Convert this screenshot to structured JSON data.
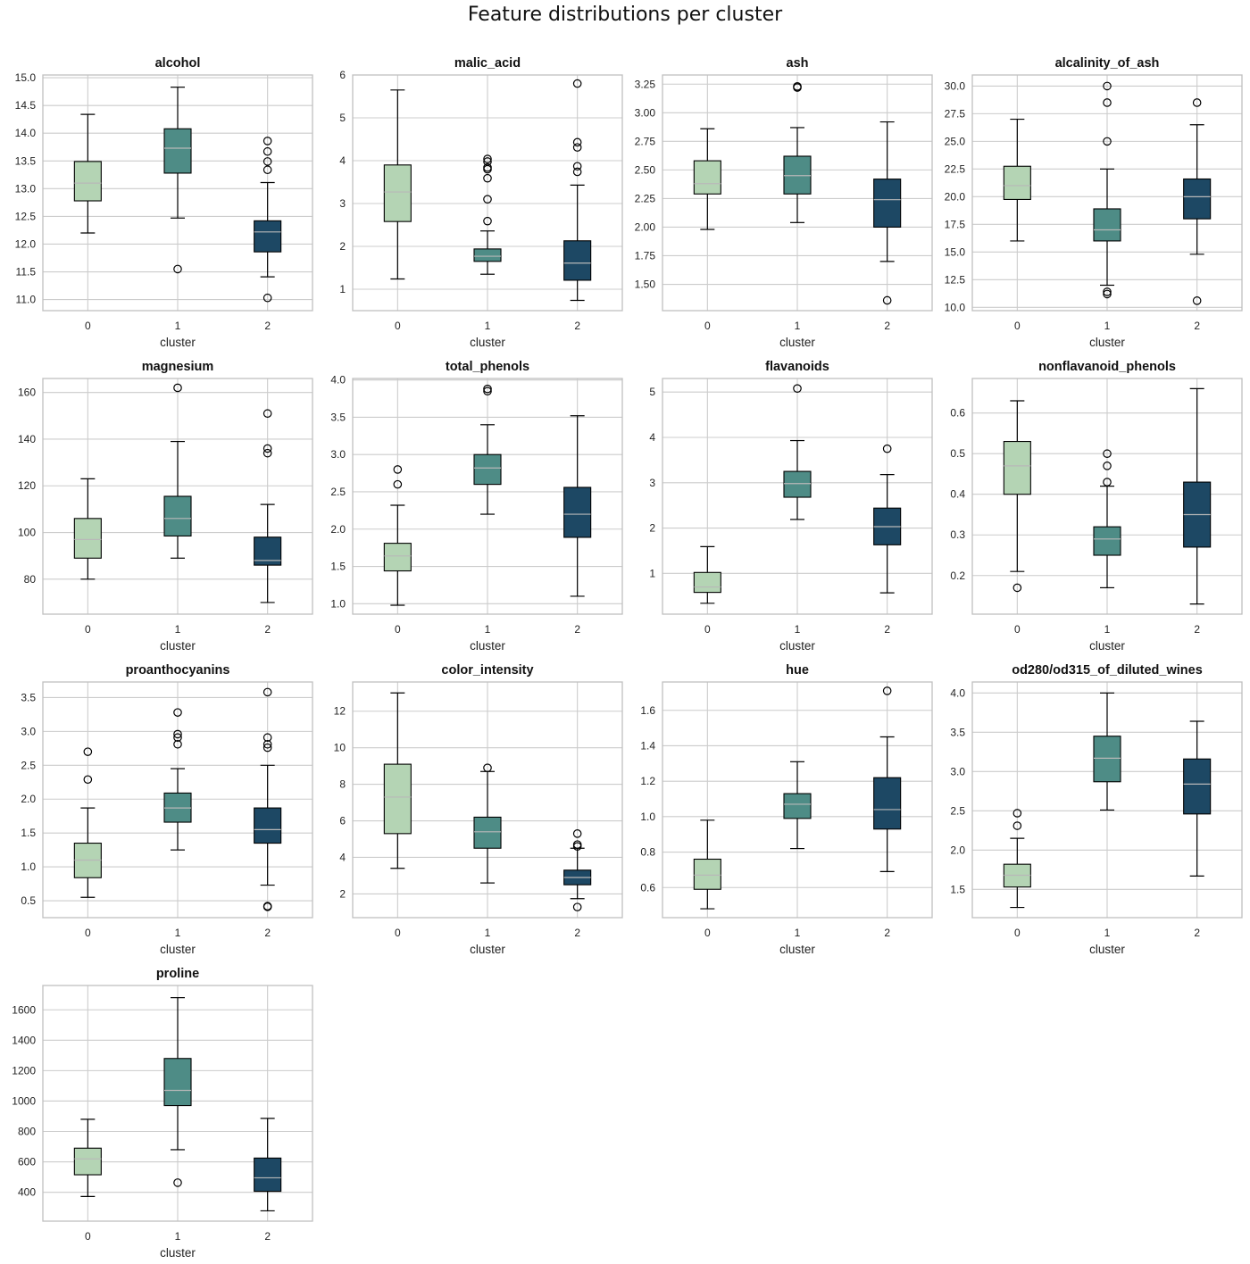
{
  "figure_title": "Feature distributions per cluster",
  "colors": {
    "cluster_0": "#b4d4b4",
    "cluster_1": "#4e8c86",
    "cluster_2": "#1d4864",
    "grid": "#cccccc",
    "frame": "#bfbfbf",
    "median": "#b8b8b8"
  },
  "chart_data": [
    {
      "type": "box",
      "title": "alcohol",
      "xlabel": "cluster",
      "categories": [
        "0",
        "1",
        "2"
      ],
      "ylim": [
        10.8,
        15.05
      ],
      "yticks": [
        11.0,
        11.5,
        12.0,
        12.5,
        13.0,
        13.5,
        14.0,
        14.5,
        15.0
      ],
      "tick_decimals": 1,
      "boxes": [
        {
          "whislo": 12.2,
          "q1": 12.78,
          "med": 13.1,
          "q3": 13.49,
          "whishi": 14.34,
          "fliers": []
        },
        {
          "whislo": 12.47,
          "q1": 13.28,
          "med": 13.73,
          "q3": 14.08,
          "whishi": 14.83,
          "fliers": [
            11.55
          ]
        },
        {
          "whislo": 11.41,
          "q1": 11.86,
          "med": 12.22,
          "q3": 12.42,
          "whishi": 13.11,
          "fliers": [
            13.86,
            13.67,
            13.49,
            13.34,
            11.03
          ]
        }
      ]
    },
    {
      "type": "box",
      "title": "malic_acid",
      "xlabel": "cluster",
      "categories": [
        "0",
        "1",
        "2"
      ],
      "ylim": [
        0.5,
        6.0
      ],
      "yticks": [
        1,
        2,
        3,
        4,
        5,
        6
      ],
      "tick_decimals": 0,
      "boxes": [
        {
          "whislo": 1.24,
          "q1": 2.58,
          "med": 3.27,
          "q3": 3.9,
          "whishi": 5.65,
          "fliers": []
        },
        {
          "whislo": 1.35,
          "q1": 1.65,
          "med": 1.77,
          "q3": 1.94,
          "whishi": 2.36,
          "fliers": [
            4.04,
            3.98,
            3.84,
            3.8,
            3.59,
            3.1,
            2.59
          ]
        },
        {
          "whislo": 0.74,
          "q1": 1.21,
          "med": 1.61,
          "q3": 2.13,
          "whishi": 3.43,
          "fliers": [
            5.8,
            4.43,
            4.31,
            3.87,
            3.74
          ]
        }
      ]
    },
    {
      "type": "box",
      "title": "ash",
      "xlabel": "cluster",
      "categories": [
        "0",
        "1",
        "2"
      ],
      "ylim": [
        1.27,
        3.33
      ],
      "yticks": [
        1.5,
        1.75,
        2.0,
        2.25,
        2.5,
        2.75,
        3.0,
        3.25
      ],
      "tick_decimals": 2,
      "boxes": [
        {
          "whislo": 1.98,
          "q1": 2.29,
          "med": 2.38,
          "q3": 2.58,
          "whishi": 2.86,
          "fliers": []
        },
        {
          "whislo": 2.04,
          "q1": 2.29,
          "med": 2.45,
          "q3": 2.62,
          "whishi": 2.87,
          "fliers": [
            3.22,
            3.23
          ]
        },
        {
          "whislo": 1.7,
          "q1": 2.0,
          "med": 2.24,
          "q3": 2.42,
          "whishi": 2.92,
          "fliers": [
            1.36
          ]
        }
      ]
    },
    {
      "type": "box",
      "title": "alcalinity_of_ash",
      "xlabel": "cluster",
      "categories": [
        "0",
        "1",
        "2"
      ],
      "ylim": [
        9.7,
        31.0
      ],
      "yticks": [
        10.0,
        12.5,
        15.0,
        17.5,
        20.0,
        22.5,
        25.0,
        27.5,
        30.0
      ],
      "tick_decimals": 1,
      "boxes": [
        {
          "whislo": 16.0,
          "q1": 19.75,
          "med": 21.0,
          "q3": 22.75,
          "whishi": 27.0,
          "fliers": []
        },
        {
          "whislo": 12.0,
          "q1": 16.0,
          "med": 17.0,
          "q3": 18.9,
          "whishi": 22.5,
          "fliers": [
            30.0,
            28.5,
            25.0,
            11.4,
            11.2
          ]
        },
        {
          "whislo": 14.8,
          "q1": 18.0,
          "med": 20.0,
          "q3": 21.6,
          "whishi": 26.5,
          "fliers": [
            28.5,
            10.6
          ]
        }
      ]
    },
    {
      "type": "box",
      "title": "magnesium",
      "xlabel": "cluster",
      "categories": [
        "0",
        "1",
        "2"
      ],
      "ylim": [
        65,
        166
      ],
      "yticks": [
        80,
        100,
        120,
        140,
        160
      ],
      "tick_decimals": 0,
      "boxes": [
        {
          "whislo": 80,
          "q1": 89,
          "med": 97,
          "q3": 106,
          "whishi": 123,
          "fliers": []
        },
        {
          "whislo": 89,
          "q1": 98.5,
          "med": 106,
          "q3": 115.5,
          "whishi": 139,
          "fliers": [
            162
          ]
        },
        {
          "whislo": 70,
          "q1": 86,
          "med": 88,
          "q3": 98,
          "whishi": 112,
          "fliers": [
            151,
            136,
            134
          ]
        }
      ]
    },
    {
      "type": "box",
      "title": "total_phenols",
      "xlabel": "cluster",
      "categories": [
        "0",
        "1",
        "2"
      ],
      "ylim": [
        0.86,
        4.02
      ],
      "yticks": [
        1.0,
        1.5,
        2.0,
        2.5,
        3.0,
        3.5,
        4.0
      ],
      "tick_decimals": 1,
      "boxes": [
        {
          "whislo": 0.98,
          "q1": 1.44,
          "med": 1.64,
          "q3": 1.81,
          "whishi": 2.32,
          "fliers": [
            2.8,
            2.6
          ]
        },
        {
          "whislo": 2.2,
          "q1": 2.6,
          "med": 2.82,
          "q3": 3.0,
          "whishi": 3.4,
          "fliers": [
            3.88,
            3.85
          ]
        },
        {
          "whislo": 1.1,
          "q1": 1.89,
          "med": 2.2,
          "q3": 2.56,
          "whishi": 3.52,
          "fliers": []
        }
      ]
    },
    {
      "type": "box",
      "title": "flavanoids",
      "xlabel": "cluster",
      "categories": [
        "0",
        "1",
        "2"
      ],
      "ylim": [
        0.1,
        5.3
      ],
      "yticks": [
        1,
        2,
        3,
        4,
        5
      ],
      "tick_decimals": 0,
      "boxes": [
        {
          "whislo": 0.34,
          "q1": 0.58,
          "med": 0.7,
          "q3": 1.02,
          "whishi": 1.59,
          "fliers": []
        },
        {
          "whislo": 2.19,
          "q1": 2.68,
          "med": 2.98,
          "q3": 3.25,
          "whishi": 3.93,
          "fliers": [
            5.08
          ]
        },
        {
          "whislo": 0.57,
          "q1": 1.63,
          "med": 2.03,
          "q3": 2.44,
          "whishi": 3.18,
          "fliers": [
            3.75
          ]
        }
      ]
    },
    {
      "type": "box",
      "title": "nonflavanoid_phenols",
      "xlabel": "cluster",
      "categories": [
        "0",
        "1",
        "2"
      ],
      "ylim": [
        0.105,
        0.685
      ],
      "yticks": [
        0.2,
        0.3,
        0.4,
        0.5,
        0.6
      ],
      "tick_decimals": 1,
      "boxes": [
        {
          "whislo": 0.21,
          "q1": 0.4,
          "med": 0.47,
          "q3": 0.53,
          "whishi": 0.63,
          "fliers": [
            0.17
          ]
        },
        {
          "whislo": 0.17,
          "q1": 0.25,
          "med": 0.29,
          "q3": 0.32,
          "whishi": 0.42,
          "fliers": [
            0.5,
            0.47,
            0.43
          ]
        },
        {
          "whislo": 0.13,
          "q1": 0.27,
          "med": 0.35,
          "q3": 0.43,
          "whishi": 0.66,
          "fliers": []
        }
      ]
    },
    {
      "type": "box",
      "title": "proanthocyanins",
      "xlabel": "cluster",
      "categories": [
        "0",
        "1",
        "2"
      ],
      "ylim": [
        0.25,
        3.73
      ],
      "yticks": [
        0.5,
        1.0,
        1.5,
        2.0,
        2.5,
        3.0,
        3.5
      ],
      "tick_decimals": 1,
      "boxes": [
        {
          "whislo": 0.55,
          "q1": 0.84,
          "med": 1.1,
          "q3": 1.35,
          "whishi": 1.87,
          "fliers": [
            2.7,
            2.29
          ]
        },
        {
          "whislo": 1.25,
          "q1": 1.66,
          "med": 1.87,
          "q3": 2.09,
          "whishi": 2.45,
          "fliers": [
            3.28,
            2.96,
            2.91,
            2.81
          ]
        },
        {
          "whislo": 0.73,
          "q1": 1.35,
          "med": 1.55,
          "q3": 1.87,
          "whishi": 2.5,
          "fliers": [
            3.58,
            2.91,
            2.81,
            2.76,
            0.42,
            0.41
          ]
        }
      ]
    },
    {
      "type": "box",
      "title": "color_intensity",
      "xlabel": "cluster",
      "categories": [
        "0",
        "1",
        "2"
      ],
      "ylim": [
        0.7,
        13.6
      ],
      "yticks": [
        2,
        4,
        6,
        8,
        10,
        12
      ],
      "tick_decimals": 0,
      "boxes": [
        {
          "whislo": 3.4,
          "q1": 5.3,
          "med": 7.3,
          "q3": 9.1,
          "whishi": 13.0,
          "fliers": []
        },
        {
          "whislo": 2.6,
          "q1": 4.5,
          "med": 5.4,
          "q3": 6.2,
          "whishi": 8.7,
          "fliers": [
            8.9
          ]
        },
        {
          "whislo": 1.74,
          "q1": 2.5,
          "med": 2.9,
          "q3": 3.3,
          "whishi": 4.5,
          "fliers": [
            5.3,
            4.7,
            4.6,
            1.28
          ]
        }
      ]
    },
    {
      "type": "box",
      "title": "hue",
      "xlabel": "cluster",
      "categories": [
        "0",
        "1",
        "2"
      ],
      "ylim": [
        0.43,
        1.76
      ],
      "yticks": [
        0.6,
        0.8,
        1.0,
        1.2,
        1.4,
        1.6
      ],
      "tick_decimals": 1,
      "boxes": [
        {
          "whislo": 0.48,
          "q1": 0.59,
          "med": 0.67,
          "q3": 0.76,
          "whishi": 0.98,
          "fliers": []
        },
        {
          "whislo": 0.82,
          "q1": 0.99,
          "med": 1.07,
          "q3": 1.13,
          "whishi": 1.31,
          "fliers": []
        },
        {
          "whislo": 0.69,
          "q1": 0.93,
          "med": 1.04,
          "q3": 1.22,
          "whishi": 1.45,
          "fliers": [
            1.71
          ]
        }
      ]
    },
    {
      "type": "box",
      "title": "od280/od315_of_diluted_wines",
      "xlabel": "cluster",
      "categories": [
        "0",
        "1",
        "2"
      ],
      "ylim": [
        1.14,
        4.14
      ],
      "yticks": [
        1.5,
        2.0,
        2.5,
        3.0,
        3.5,
        4.0
      ],
      "tick_decimals": 1,
      "boxes": [
        {
          "whislo": 1.27,
          "q1": 1.53,
          "med": 1.68,
          "q3": 1.82,
          "whishi": 2.15,
          "fliers": [
            2.47,
            2.31
          ]
        },
        {
          "whislo": 2.51,
          "q1": 2.87,
          "med": 3.17,
          "q3": 3.45,
          "whishi": 4.0,
          "fliers": []
        },
        {
          "whislo": 1.67,
          "q1": 2.46,
          "med": 2.84,
          "q3": 3.16,
          "whishi": 3.64,
          "fliers": []
        }
      ]
    },
    {
      "type": "box",
      "title": "proline",
      "xlabel": "cluster",
      "categories": [
        "0",
        "1",
        "2"
      ],
      "ylim": [
        210,
        1760
      ],
      "yticks": [
        400,
        600,
        800,
        1000,
        1200,
        1400,
        1600
      ],
      "tick_decimals": 0,
      "boxes": [
        {
          "whislo": 372,
          "q1": 515,
          "med": 620,
          "q3": 690,
          "whishi": 880,
          "fliers": []
        },
        {
          "whislo": 680,
          "q1": 970,
          "med": 1070,
          "q3": 1280,
          "whishi": 1680,
          "fliers": [
            463
          ]
        },
        {
          "whislo": 278,
          "q1": 406,
          "med": 495,
          "q3": 625,
          "whishi": 886,
          "fliers": []
        }
      ]
    }
  ]
}
